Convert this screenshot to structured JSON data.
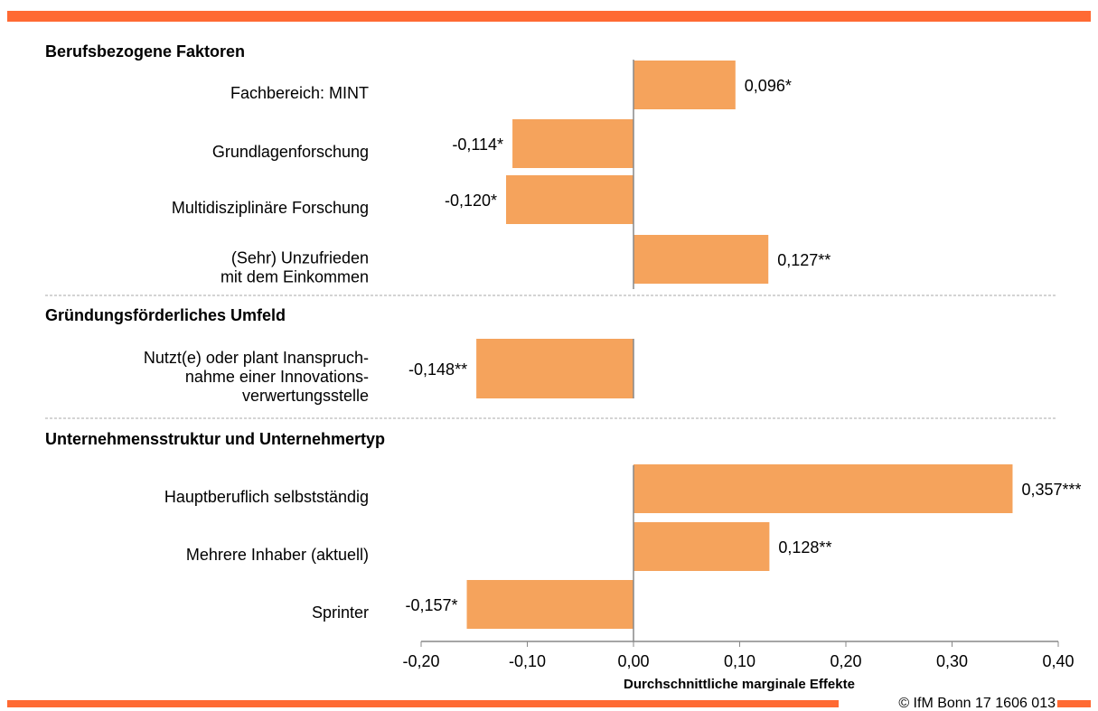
{
  "chart_data": {
    "type": "bar",
    "orientation": "horizontal",
    "color": "#f5a35c",
    "xlabel": "Durchschnittliche marginale Effekte",
    "xlim": [
      -0.2,
      0.4
    ],
    "xticks": [
      {
        "value": -0.2,
        "label": "-0,20"
      },
      {
        "value": -0.1,
        "label": "-0,10"
      },
      {
        "value": 0,
        "label": "0,00"
      },
      {
        "value": 0.1,
        "label": "0,10"
      },
      {
        "value": 0.2,
        "label": "0,20"
      },
      {
        "value": 0.3,
        "label": "0,30"
      },
      {
        "value": 0.4,
        "label": "0,40"
      }
    ],
    "groups": [
      {
        "title": "Berufsbezogene Faktoren",
        "categories": [
          [
            "Fachbereich: MINT"
          ],
          [
            "Grundlagenforschung"
          ],
          [
            "Multidisziplinäre Forschung"
          ],
          [
            "(Sehr) Unzufrieden",
            "mit dem Einkommen"
          ]
        ],
        "values": [
          0.096,
          -0.114,
          -0.12,
          0.127
        ],
        "value_labels": [
          "0,096*",
          "-0,114*",
          "-0,120*",
          "0,127**"
        ]
      },
      {
        "title": "Gründungsförderliches Umfeld",
        "categories": [
          [
            "Nutzt(e) oder plant Inanspruch-",
            "nahme einer Innovations-",
            "verwertungsstelle"
          ]
        ],
        "values": [
          -0.148
        ],
        "value_labels": [
          "-0,148**"
        ]
      },
      {
        "title": "Unternehmensstruktur und Unternehmertyp",
        "categories": [
          [
            "Hauptberuflich selbstständig"
          ],
          [
            "Mehrere Inhaber (aktuell)"
          ],
          [
            "Sprinter"
          ]
        ],
        "values": [
          0.357,
          0.128,
          -0.157
        ],
        "value_labels": [
          "0,357***",
          "0,128**",
          "-0,157*"
        ]
      }
    ],
    "footer": "© IfM Bonn 17 1606 013"
  }
}
